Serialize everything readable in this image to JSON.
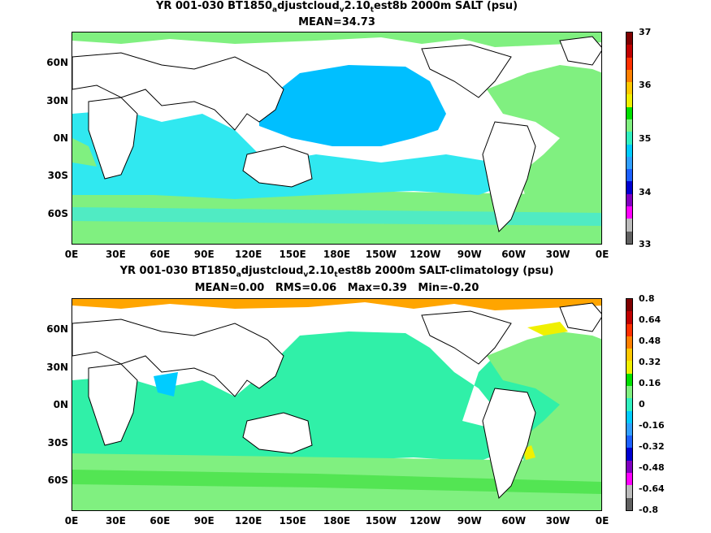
{
  "panel1": {
    "title_line1": "YR 001-030 BT1850adjustcloudv2.10test8b 2000m SALT (psu)",
    "title_parts": [
      "YR 001-030 BT1850",
      "a",
      "djustcloud",
      "v",
      "2.10",
      "t",
      "est8b 2000m SALT (psu)"
    ],
    "title_line2": "MEAN=34.73",
    "colorbar_labels": [
      "37",
      "36",
      "35",
      "34",
      "33"
    ]
  },
  "panel2": {
    "title_parts": [
      "YR 001-030 BT1850",
      "a",
      "djustcloud",
      "v",
      "2.10",
      "t",
      "est8b 2000m SALT-climatology (psu)"
    ],
    "title_line2": "MEAN=0.00   RMS=0.06   Max=0.39   Min=-0.20",
    "colorbar_labels": [
      "0.8",
      "0.64",
      "0.48",
      "0.32",
      "0.16",
      "0",
      "-0.16",
      "-0.32",
      "-0.48",
      "-0.64",
      "-0.8"
    ]
  },
  "axes": {
    "lat_labels": [
      "60N",
      "30N",
      "0N",
      "30S",
      "60S"
    ],
    "lon_labels": [
      "0E",
      "30E",
      "60E",
      "90E",
      "120E",
      "150E",
      "180E",
      "150W",
      "120W",
      "90W",
      "60W",
      "30W",
      "0E"
    ]
  },
  "colors": {
    "cbar1": [
      "#7f0000",
      "#c00000",
      "#ff3000",
      "#ff8000",
      "#ffc800",
      "#f0f000",
      "#00e000",
      "#80f080",
      "#30f0c0",
      "#00ccff",
      "#30a0ff",
      "#1c60ff",
      "#0000d0",
      "#8000c0",
      "#ff00ff",
      "#bbbbbb",
      "#606060"
    ],
    "cbar2": [
      "#7f0000",
      "#c00000",
      "#ff3000",
      "#ff8000",
      "#ffc800",
      "#f0f000",
      "#00e000",
      "#80f080",
      "#30f0c0",
      "#00ccff",
      "#30a0ff",
      "#1c60ff",
      "#0000d0",
      "#8000c0",
      "#ff00ff",
      "#bbbbbb",
      "#606060"
    ]
  }
}
